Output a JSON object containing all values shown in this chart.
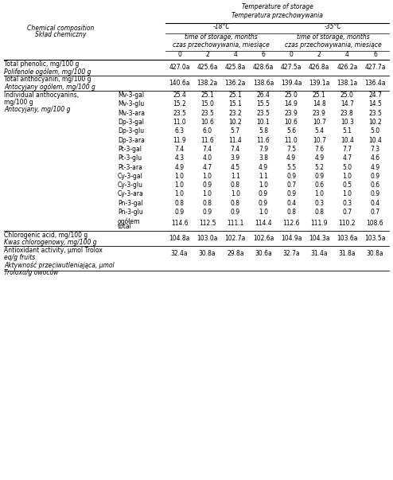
{
  "title_line1": "Temperature of storage",
  "title_line2": "Temperatura przechowywania",
  "temp1": "-18°C",
  "temp2": "-35°C",
  "storage_label_en": "time of storage, months",
  "storage_label_pl": "czas przechowywania, miesiące",
  "col_header": [
    "0",
    "2",
    "4",
    "6",
    "0",
    "2",
    "4",
    "6"
  ],
  "left_col_header_en": "Chemical composition",
  "left_col_header_pl": "Skład chemiczny",
  "rows": [
    {
      "label1": "Total phenolic, mg/100 g",
      "label2": "Polifenole ogólem, mg/100 g",
      "sub": "",
      "values": [
        "427.0a",
        "425.6a",
        "425.8a",
        "428.6a",
        "427.5a",
        "426.8a",
        "426.2a",
        "427.7a"
      ],
      "type": "main",
      "italic_label": false
    },
    {
      "label1": "Total anthocyanin, mg/100 g",
      "label2": "Antocyjany ogólem, mg/100 g",
      "sub": "",
      "values": [
        "140.6a",
        "138.2a",
        "136.2a",
        "138.6a",
        "139.4a",
        "139.1a",
        "138.1a",
        "136.4a"
      ],
      "type": "main",
      "italic_label": false
    },
    {
      "label1": "Individual anthocyanins,",
      "label2": "mg/100 g",
      "label3": "Antocyjany, mg/100 g",
      "sub": "Mv-3-gal",
      "values": [
        "25.4",
        "25.1",
        "25.1",
        "26.4",
        "25.0",
        "25.1",
        "25.0",
        "24.7"
      ],
      "type": "sub_first"
    },
    {
      "sub": "Mv-3-glu",
      "values": [
        "15.2",
        "15.0",
        "15.1",
        "15.5",
        "14.9",
        "14.8",
        "14.7",
        "14.5"
      ],
      "type": "sub"
    },
    {
      "sub": "Mv-3-ara",
      "values": [
        "23.5",
        "23.5",
        "23.2",
        "23.5",
        "23.9",
        "23.9",
        "23.8",
        "23.5"
      ],
      "type": "sub"
    },
    {
      "sub": "Dp-3-gal",
      "values": [
        "11.0",
        "10.6",
        "10.2",
        "10.1",
        "10.6",
        "10.7",
        "10.3",
        "10.2"
      ],
      "type": "sub"
    },
    {
      "sub": "Dp-3-glu",
      "values": [
        "6.3",
        "6.0",
        "5.7",
        "5.8",
        "5.6",
        "5.4",
        "5.1",
        "5.0"
      ],
      "type": "sub"
    },
    {
      "sub": "Dp-3-ara",
      "values": [
        "11.9",
        "11.6",
        "11.4",
        "11.6",
        "11.0",
        "10.7",
        "10.4",
        "10.4"
      ],
      "type": "sub"
    },
    {
      "sub": "Pt-3-gal",
      "values": [
        "7.4",
        "7.4",
        "7.4",
        "7.9",
        "7.5",
        "7.6",
        "7.7",
        "7.3"
      ],
      "type": "sub"
    },
    {
      "sub": "Pt-3-glu",
      "values": [
        "4.3",
        "4.0",
        "3.9",
        "3.8",
        "4.9",
        "4.9",
        "4.7",
        "4.6"
      ],
      "type": "sub"
    },
    {
      "sub": "Pt-3-ara",
      "values": [
        "4.9",
        "4.7",
        "4.5",
        "4.9",
        "5.5",
        "5.2",
        "5.0",
        "4.9"
      ],
      "type": "sub"
    },
    {
      "sub": "Cy-3-gal",
      "values": [
        "1.0",
        "1.0",
        "1.1",
        "1.1",
        "0.9",
        "0.9",
        "1.0",
        "0.9"
      ],
      "type": "sub"
    },
    {
      "sub": "Cy-3-glu",
      "values": [
        "1.0",
        "0.9",
        "0.8",
        "1.0",
        "0.7",
        "0.6",
        "0.5",
        "0.6"
      ],
      "type": "sub"
    },
    {
      "sub": "Cy-3-ara",
      "values": [
        "1.0",
        "1.0",
        "1.0",
        "0.9",
        "0.9",
        "1.0",
        "1.0",
        "0.9"
      ],
      "type": "sub"
    },
    {
      "sub": "Pn-3-gal",
      "values": [
        "0.8",
        "0.8",
        "0.8",
        "0.9",
        "0.4",
        "0.3",
        "0.3",
        "0.4"
      ],
      "type": "sub"
    },
    {
      "sub": "Pn-3-glu",
      "values": [
        "0.9",
        "0.9",
        "0.9",
        "1.0",
        "0.8",
        "0.8",
        "0.7",
        "0.7"
      ],
      "type": "sub"
    },
    {
      "sub": "ogółem\ntotal",
      "values": [
        "114.6",
        "112.5",
        "111.1",
        "114.4",
        "112.6",
        "111.9",
        "110.2",
        "108.6"
      ],
      "type": "sub_last"
    },
    {
      "label1": "Chlorogenic acid, mg/100 g",
      "label2": "Kwas chlorogenowy, mg/100 g",
      "sub": "",
      "values": [
        "104.8a",
        "103.0a",
        "102.7a",
        "102.6a",
        "104.9a",
        "104.3a",
        "103.6a",
        "103.5a"
      ],
      "type": "main"
    },
    {
      "label1": "Antioxidant activity, μmol Trolox",
      "label2": "eq/g fruits",
      "label3": "Aktywność przeciwutleniająca, μmol",
      "label4": "Troloxu/g owoców",
      "sub": "",
      "values": [
        "32.4a",
        "30.8a",
        "29.8a",
        "30.6a",
        "32.7a",
        "31.4a",
        "31.8a",
        "30.8a"
      ],
      "type": "main_last"
    }
  ],
  "figwidth": 4.94,
  "figheight": 6.03,
  "dpi": 100
}
